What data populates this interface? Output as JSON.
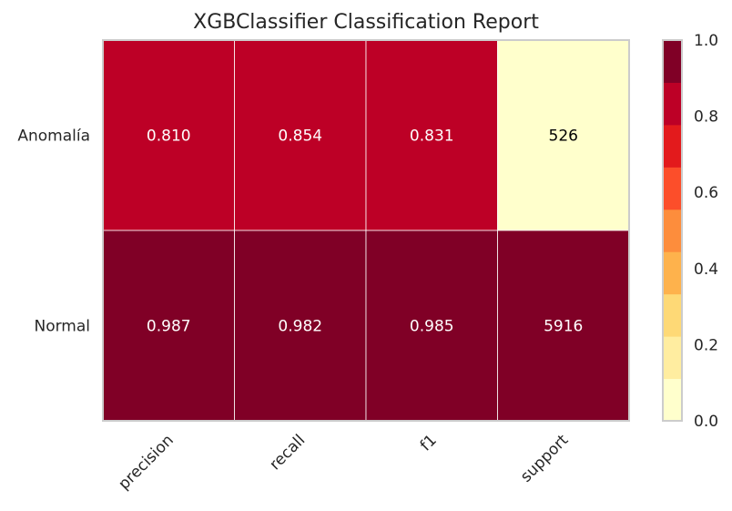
{
  "chart_data": {
    "type": "heatmap",
    "title": "XGBClassifier Classification Report",
    "rows": [
      "Anomalía",
      "Normal"
    ],
    "columns": [
      "precision",
      "recall",
      "f1",
      "support"
    ],
    "values": [
      [
        0.81,
        0.854,
        0.831,
        526
      ],
      [
        0.987,
        0.982,
        0.985,
        5916
      ]
    ],
    "cell_labels": [
      [
        "0.810",
        "0.854",
        "0.831",
        "526"
      ],
      [
        "0.987",
        "0.982",
        "0.985",
        "5916"
      ]
    ],
    "color_values": [
      [
        0.81,
        0.854,
        0.831,
        0
      ],
      [
        0.987,
        0.982,
        0.985,
        1
      ]
    ],
    "colorbar": {
      "range": [
        0,
        1
      ],
      "ticks": [
        "0.0",
        "0.2",
        "0.4",
        "0.6",
        "0.8",
        "1.0"
      ],
      "colors": [
        "#ffffcc",
        "#ffeda0",
        "#fed976",
        "#feb24c",
        "#fd8d3c",
        "#fc4e2a",
        "#e31a1c",
        "#bd0026",
        "#800026"
      ]
    },
    "grid": false,
    "legend": "colorbar-right"
  }
}
